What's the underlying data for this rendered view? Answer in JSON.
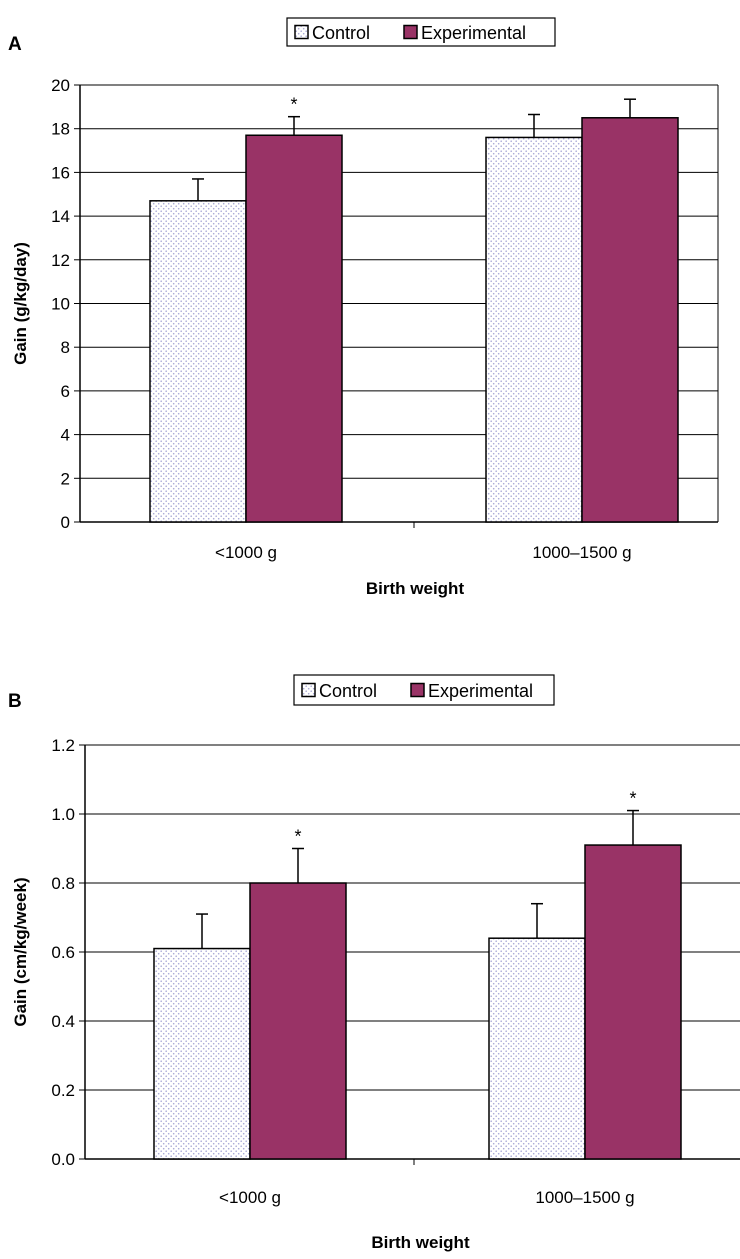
{
  "chart_data": [
    {
      "type": "bar",
      "panel_label": "A",
      "categories": [
        "<1000 g",
        "1000–1500 g"
      ],
      "series": [
        {
          "name": "Control",
          "values": [
            14.7,
            17.6
          ],
          "errors": [
            1.0,
            1.05
          ],
          "significance": [
            "",
            ""
          ]
        },
        {
          "name": "Experimental",
          "values": [
            17.7,
            18.5
          ],
          "errors": [
            0.85,
            0.85
          ],
          "significance": [
            "*",
            ""
          ]
        }
      ],
      "xlabel": "Birth weight",
      "ylabel": "Gain (g/kg/day)",
      "ylim": [
        0,
        20
      ],
      "yticks": [
        "0",
        "2",
        "4",
        "6",
        "8",
        "10",
        "12",
        "14",
        "16",
        "18",
        "20"
      ],
      "grid": true,
      "legend": "top-center"
    },
    {
      "type": "bar",
      "panel_label": "B",
      "categories": [
        "<1000 g",
        "1000–1500 g"
      ],
      "series": [
        {
          "name": "Control",
          "values": [
            0.61,
            0.64
          ],
          "errors": [
            0.1,
            0.1
          ],
          "significance": [
            "",
            ""
          ]
        },
        {
          "name": "Experimental",
          "values": [
            0.8,
            0.91
          ],
          "errors": [
            0.1,
            0.1
          ],
          "significance": [
            "*",
            "*"
          ]
        }
      ],
      "xlabel": "Birth weight",
      "ylabel": "Gain (cm/kg/week)",
      "ylim": [
        0,
        1.2
      ],
      "yticks": [
        "0.0",
        "0.2",
        "0.4",
        "0.6",
        "0.8",
        "1.0",
        "1.2"
      ],
      "grid": true,
      "legend": "top-center"
    }
  ],
  "colors": {
    "control_dots": "#a9a9d6",
    "experimental": "#993366",
    "grid": "#000000"
  }
}
